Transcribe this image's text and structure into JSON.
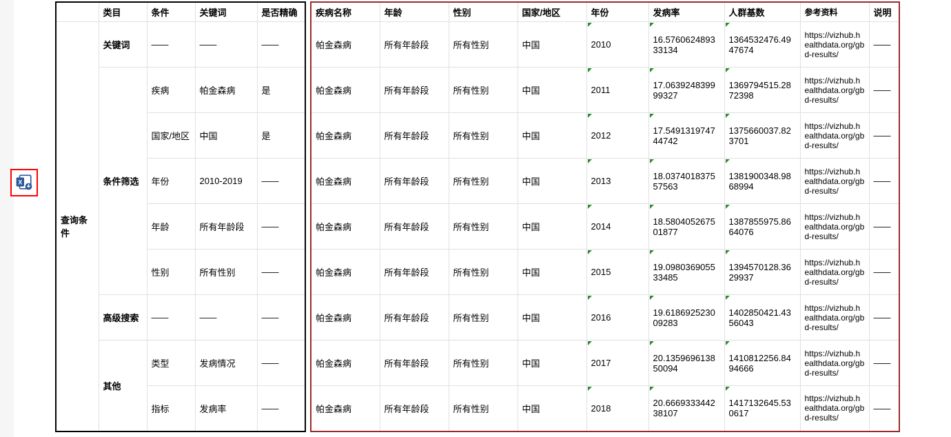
{
  "colors": {
    "left_border": "#000000",
    "right_border": "#9a2a2a",
    "cell_border": "#e0e0e0",
    "excel_highlight": "#ff0000",
    "flag_marker": "#2e8b2e",
    "background": "#ffffff"
  },
  "left_table": {
    "headers": [
      "类目",
      "条件",
      "关键词",
      "是否精确"
    ],
    "root_label": "查询条件",
    "groups": [
      {
        "label": "关键词",
        "rows": [
          {
            "condition": "——",
            "keyword": "——",
            "exact": "——"
          }
        ]
      },
      {
        "label": "条件筛选",
        "rows": [
          {
            "condition": "疾病",
            "keyword": "帕金森病",
            "exact": "是"
          },
          {
            "condition": "国家/地区",
            "keyword": "中国",
            "exact": "是"
          },
          {
            "condition": "年份",
            "keyword": "2010-2019",
            "exact": "——"
          },
          {
            "condition": "年龄",
            "keyword": "所有年龄段",
            "exact": "——"
          },
          {
            "condition": "性别",
            "keyword": "所有性别",
            "exact": "——"
          }
        ]
      },
      {
        "label": "高级搜索",
        "rows": [
          {
            "condition": "——",
            "keyword": "——",
            "exact": "——"
          }
        ]
      },
      {
        "label": "其他",
        "rows": [
          {
            "condition": "类型",
            "keyword": "发病情况",
            "exact": "——"
          },
          {
            "condition": "指标",
            "keyword": "发病率",
            "exact": "——"
          }
        ]
      }
    ]
  },
  "right_table": {
    "headers": [
      "疾病名称",
      "年龄",
      "性别",
      "国家/地区",
      "年份",
      "发病率",
      "人群基数",
      "参考资料",
      "说明"
    ],
    "rows": [
      {
        "disease": "帕金森病",
        "age": "所有年龄段",
        "sex": "所有性别",
        "region": "中国",
        "year": "2010",
        "rate": "16.576062489333134",
        "pop": "1364532476.4947674",
        "ref": "https://vizhub.healthdata.org/gbd-results/",
        "desc": "——"
      },
      {
        "disease": "帕金森病",
        "age": "所有年龄段",
        "sex": "所有性别",
        "region": "中国",
        "year": "2011",
        "rate": "17.063924839999327",
        "pop": "1369794515.2872398",
        "ref": "https://vizhub.healthdata.org/gbd-results/",
        "desc": "——"
      },
      {
        "disease": "帕金森病",
        "age": "所有年龄段",
        "sex": "所有性别",
        "region": "中国",
        "year": "2012",
        "rate": "17.549131974744742",
        "pop": "1375660037.823701",
        "ref": "https://vizhub.healthdata.org/gbd-results/",
        "desc": "——"
      },
      {
        "disease": "帕金森病",
        "age": "所有年龄段",
        "sex": "所有性别",
        "region": "中国",
        "year": "2013",
        "rate": "18.037401837557563",
        "pop": "1381900348.9868994",
        "ref": "https://vizhub.healthdata.org/gbd-results/",
        "desc": "——"
      },
      {
        "disease": "帕金森病",
        "age": "所有年龄段",
        "sex": "所有性别",
        "region": "中国",
        "year": "2014",
        "rate": "18.580405267501877",
        "pop": "1387855975.8664076",
        "ref": "https://vizhub.healthdata.org/gbd-results/",
        "desc": "——"
      },
      {
        "disease": "帕金森病",
        "age": "所有年龄段",
        "sex": "所有性别",
        "region": "中国",
        "year": "2015",
        "rate": "19.098036905533485",
        "pop": "1394570128.3629937",
        "ref": "https://vizhub.healthdata.org/gbd-results/",
        "desc": "——"
      },
      {
        "disease": "帕金森病",
        "age": "所有年龄段",
        "sex": "所有性别",
        "region": "中国",
        "year": "2016",
        "rate": "19.618692523009283",
        "pop": "1402850421.4356043",
        "ref": "https://vizhub.healthdata.org/gbd-results/",
        "desc": "——"
      },
      {
        "disease": "帕金森病",
        "age": "所有年龄段",
        "sex": "所有性别",
        "region": "中国",
        "year": "2017",
        "rate": "20.135969613850094",
        "pop": "1410812256.8494666",
        "ref": "https://vizhub.healthdata.org/gbd-results/",
        "desc": "——"
      },
      {
        "disease": "帕金森病",
        "age": "所有年龄段",
        "sex": "所有性别",
        "region": "中国",
        "year": "2018",
        "rate": "20.666933344238107",
        "pop": "1417132645.530617",
        "ref": "https://vizhub.healthdata.org/gbd-results/",
        "desc": "——"
      }
    ]
  },
  "icon": {
    "name": "excel-download-icon"
  }
}
